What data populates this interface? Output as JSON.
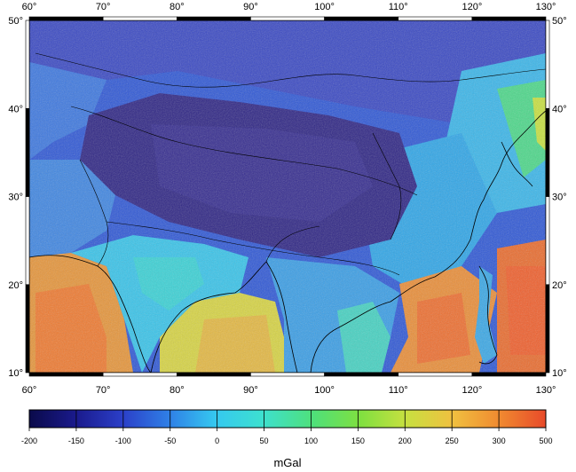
{
  "map": {
    "lon_range": [
      60,
      130
    ],
    "lat_range": [
      10,
      50
    ],
    "lon_ticks": [
      60,
      70,
      80,
      90,
      100,
      110,
      120,
      130
    ],
    "lat_ticks": [
      10,
      20,
      30,
      40,
      50
    ],
    "degree_symbol": "°",
    "lon_labels": [
      "60°",
      "70°",
      "80°",
      "90°",
      "100°",
      "110°",
      "120°",
      "130°"
    ],
    "lat_labels": [
      "10°",
      "20°",
      "30°",
      "40°",
      "50°"
    ]
  },
  "colorbar": {
    "range": [
      -200,
      500
    ],
    "tick_labels": [
      "-200",
      "-150",
      "-100",
      "-50",
      "0",
      "50",
      "100",
      "150",
      "200",
      "250",
      "300",
      "500"
    ],
    "unit": "mGal",
    "colors": [
      "#0a0a4a",
      "#1a1a8c",
      "#2b3fc8",
      "#2f7fe6",
      "#35c8f0",
      "#3de0d0",
      "#4fe07a",
      "#7fe040",
      "#c8e040",
      "#f0c040",
      "#f08a30",
      "#e84a2a"
    ]
  },
  "palette": {
    "deep": "#2a2a86",
    "plateau": "#3a2f8a",
    "mid_blue": "#3d6fe0",
    "cyan": "#38c8ec",
    "green": "#55d870",
    "yellow": "#e8d24a",
    "orange": "#ee8a34",
    "red": "#e8542c"
  }
}
